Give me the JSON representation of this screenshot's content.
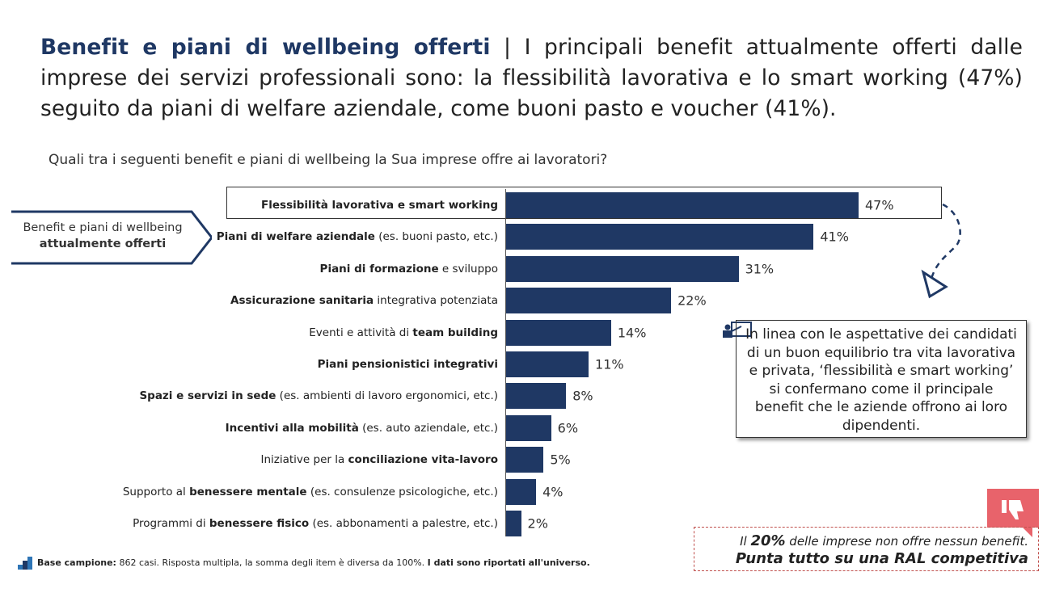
{
  "title": {
    "bold": "Benefit e piani di wellbeing offerti",
    "rest": " | I principali benefit attualmente offerti dalle imprese dei servizi professionali sono: la flessibilità lavorativa e lo smart working (47%) seguito da piani di welfare aziendale, come buoni pasto e voucher (41%)."
  },
  "question": "Quali tra i seguenti benefit e piani di wellbeing la Sua imprese offre ai lavoratori?",
  "side_tag": {
    "line1": "Benefit e piani di wellbeing",
    "line2": "attualmente offerti"
  },
  "chart_data": {
    "type": "bar",
    "orientation": "horizontal",
    "title": "",
    "xlabel": "",
    "ylabel": "",
    "xlim": [
      0,
      50
    ],
    "grid": false,
    "bar_color": "#1f3864",
    "categories": [
      {
        "pre": "",
        "bold": "Flessibilità lavorativa e smart working",
        "post": ""
      },
      {
        "pre": "",
        "bold": "Piani di welfare aziendale",
        "post": " (es. buoni pasto, etc.)"
      },
      {
        "pre": "",
        "bold": "Piani di formazione",
        "post": " e sviluppo"
      },
      {
        "pre": "",
        "bold": "Assicurazione sanitaria",
        "post": " integrativa potenziata"
      },
      {
        "pre": "Eventi e attività di ",
        "bold": "team building",
        "post": ""
      },
      {
        "pre": "",
        "bold": "Piani pensionistici integrativi",
        "post": ""
      },
      {
        "pre": "",
        "bold": "Spazi e servizi in sede",
        "post": " (es. ambienti di lavoro ergonomici, etc.)"
      },
      {
        "pre": "",
        "bold": "Incentivi alla mobilità",
        "post": " (es. auto aziendale, etc.)"
      },
      {
        "pre": "Iniziative per la ",
        "bold": "conciliazione vita-lavoro",
        "post": ""
      },
      {
        "pre": "Supporto al ",
        "bold": "benessere mentale",
        "post": " (es. consulenze psicologiche, etc.)"
      },
      {
        "pre": "Programmi di ",
        "bold": "benessere fisico",
        "post": " (es. abbonamenti a palestre, etc.)"
      }
    ],
    "values": [
      47,
      41,
      31,
      22,
      14,
      11,
      8,
      6,
      5,
      4,
      2
    ],
    "value_labels": [
      "47%",
      "41%",
      "31%",
      "22%",
      "14%",
      "11%",
      "8%",
      "6%",
      "5%",
      "4%",
      "2%"
    ]
  },
  "callout": "In linea con le aspettative dei candidati di un buon equilibrio tra vita lavorativa e privata, ‘flessibilità e smart working’ si confermano come il principale benefit che le aziende offrono ai loro dipendenti.",
  "note": {
    "pre": "Il ",
    "bold": "20%",
    "post": " delle imprese non offre nessun benefit.",
    "line2": "Punta tutto su una RAL competitiva"
  },
  "footer": {
    "bold1": "Base campione:",
    "text": " 862 casi. Risposta multipla, la somma degli item è diversa da 100%. ",
    "bold2": "I dati sono riportati all'universo."
  },
  "colors": {
    "navy": "#1f3864",
    "accent_red": "#e8636b"
  }
}
